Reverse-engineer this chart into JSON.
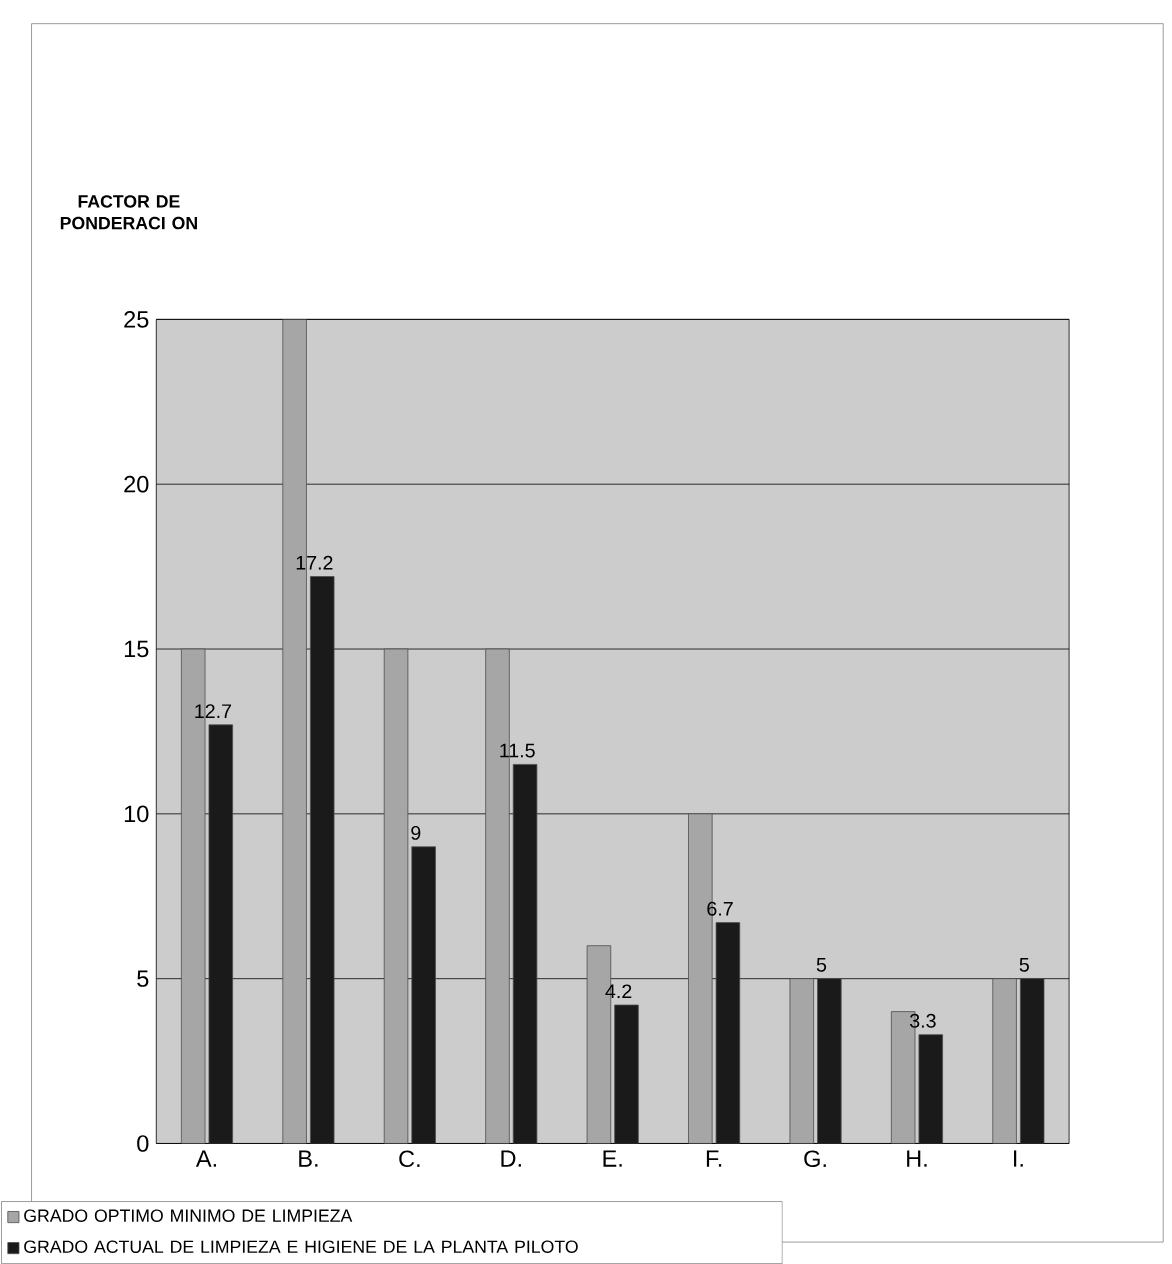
{
  "chart_data": {
    "type": "bar",
    "ylabel": "FACTOR DE PONDERACI ON",
    "categories": [
      "A.",
      "B.",
      "C.",
      "D.",
      "E.",
      "F.",
      "G.",
      "H.",
      "I."
    ],
    "series": [
      {
        "name": "GRADO OPTIMO MINIMO DE LIMPIEZA",
        "color": "#a6a6a6",
        "values": [
          15,
          25,
          15,
          15,
          6,
          10,
          5,
          4,
          5
        ]
      },
      {
        "name": "GRADO ACTUAL DE LIMPIEZA E HIGIENE DE LA PLANTA PILOTO",
        "color": "#1a1a1a",
        "values": [
          12.7,
          17.2,
          9,
          11.5,
          4.2,
          6.7,
          5,
          3.3,
          5
        ],
        "value_labels": [
          "12.7",
          "17.2",
          "9",
          "11.5",
          "4.2",
          "6.7",
          "5",
          "3.3",
          "5"
        ]
      }
    ],
    "ylim": [
      0,
      25
    ],
    "yticks": [
      0,
      5,
      10,
      15,
      20,
      25
    ],
    "grid": "y",
    "legend": "bottom"
  }
}
